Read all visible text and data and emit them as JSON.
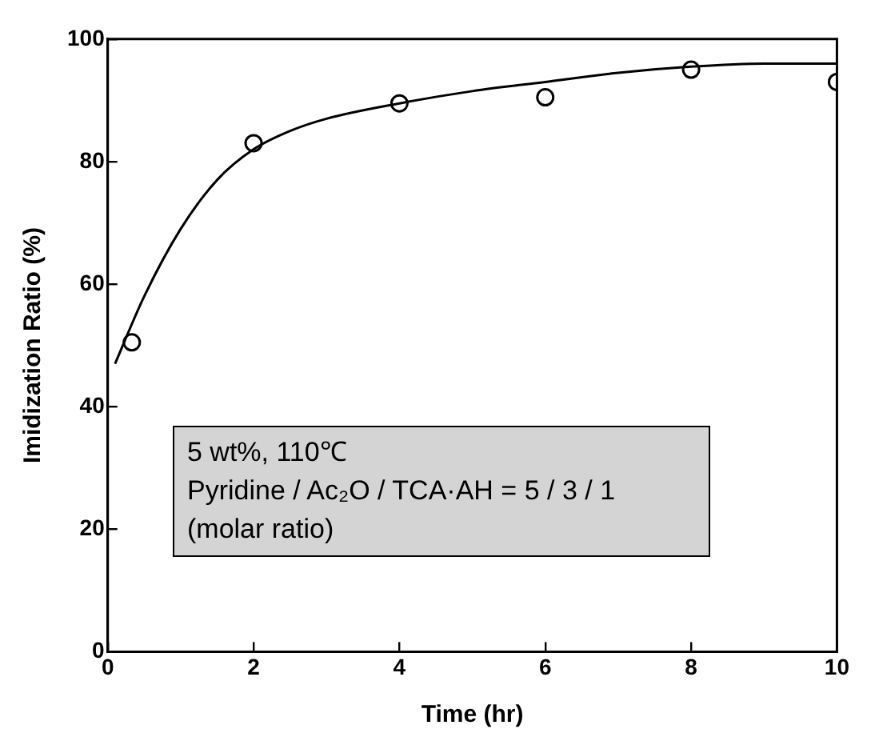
{
  "chart_data": {
    "type": "scatter",
    "xlabel": "Time (hr)",
    "ylabel": "Imidization Ratio (%)",
    "xlim": [
      0,
      10
    ],
    "xticks": [
      0,
      2,
      4,
      6,
      8,
      10
    ],
    "ylim": [
      0,
      100
    ],
    "yticks": [
      0,
      20,
      40,
      60,
      80,
      100
    ],
    "grid": false,
    "legend": false,
    "series": [
      {
        "type": "line",
        "color": "#000000",
        "marker": "none",
        "x": [
          0.1,
          0.5,
          1,
          1.5,
          2,
          2.5,
          3,
          4,
          5,
          6,
          7,
          8,
          9,
          10
        ],
        "values": [
          47,
          58,
          69,
          77,
          82,
          85,
          87,
          89.5,
          91.5,
          93,
          94.5,
          95.5,
          96,
          96
        ]
      },
      {
        "type": "scatter",
        "color": "#000000",
        "marker": "circle",
        "x": [
          0.33,
          2,
          4,
          6,
          8,
          10
        ],
        "values": [
          50.5,
          83,
          89.5,
          90.5,
          95,
          93
        ]
      }
    ],
    "annotations": [
      "5 wt%, 110℃",
      "Pyridine / Ac₂O / TCA·AH = 5 / 3 / 1",
      "(molar ratio)"
    ]
  }
}
